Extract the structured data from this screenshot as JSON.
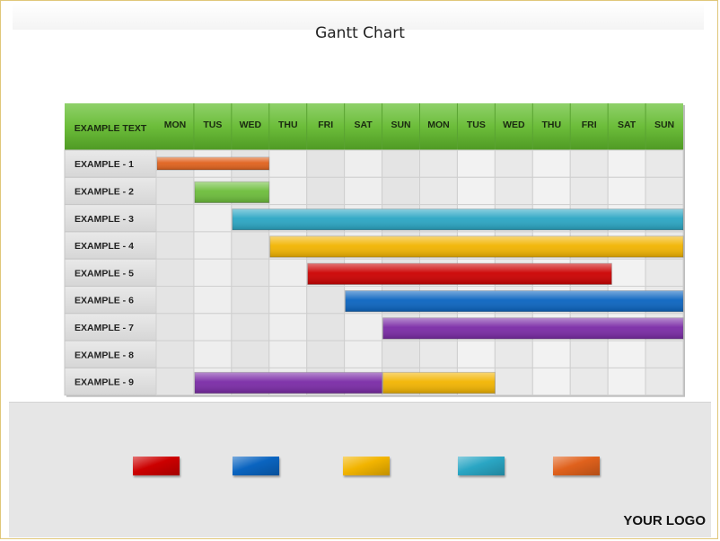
{
  "title": "Gantt Chart",
  "logo": "YOUR LOGO",
  "chart_data": {
    "type": "gantt",
    "header_label": "EXAMPLE TEXT",
    "columns": [
      "MON",
      "TUS",
      "WED",
      "THU",
      "FRI",
      "SAT",
      "SUN",
      "MON",
      "TUS",
      "WED",
      "THU",
      "FRI",
      "SAT",
      "SUN"
    ],
    "rows": [
      "EXAMPLE - 1",
      "EXAMPLE - 2",
      "EXAMPLE - 3",
      "EXAMPLE - 4",
      "EXAMPLE - 5",
      "EXAMPLE - 6",
      "EXAMPLE - 7",
      "EXAMPLE - 8",
      "EXAMPLE - 9"
    ],
    "bars": [
      {
        "row": 0,
        "start": 0.0,
        "end": 3.0,
        "color": "#e0611c"
      },
      {
        "row": 1,
        "start": 1.0,
        "end": 3.0,
        "color": "#6cbd3a"
      },
      {
        "row": 2,
        "start": 2.0,
        "end": 14.0,
        "color": "#2aa6c4"
      },
      {
        "row": 3,
        "start": 3.0,
        "end": 14.0,
        "color": "#f2b400"
      },
      {
        "row": 4,
        "start": 4.0,
        "end": 12.1,
        "color": "#cc0000"
      },
      {
        "row": 5,
        "start": 5.0,
        "end": 14.0,
        "color": "#0a64c0"
      },
      {
        "row": 6,
        "start": 6.0,
        "end": 14.0,
        "color": "#7a2aa6"
      },
      {
        "row": 8,
        "start": 1.0,
        "end": 6.0,
        "color": "#7a2aa6"
      },
      {
        "row": 8,
        "start": 6.0,
        "end": 9.0,
        "color": "#f2b400"
      }
    ],
    "header_color": "#6cbd3a",
    "legend_colors": [
      "#cc0000",
      "#0a64c0",
      "#f2b400",
      "#2aa6c4",
      "#e0611c"
    ]
  }
}
